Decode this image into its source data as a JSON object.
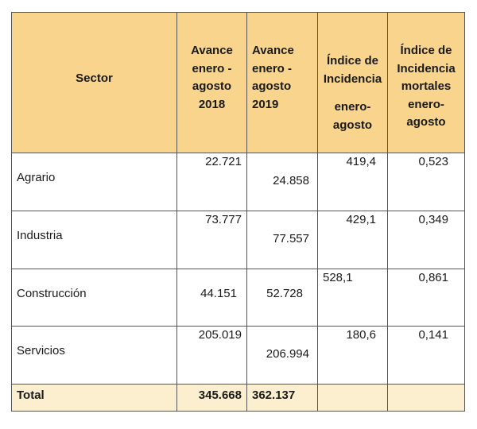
{
  "table": {
    "headers": {
      "sector": "Sector",
      "avance_2018": "Avance\nenero -\nagosto\n2018",
      "avance_2019": "Avance\nenero -\nagosto\n2019",
      "indice": "Índice de\nIncidencia",
      "indice_sub": "enero-\nagosto",
      "indice_mortales": "Índice de\nIncidencia\nmortales\nenero-\nagosto"
    },
    "rows": [
      {
        "sector": "Agrario",
        "avance_2018": "22.721",
        "avance_2019": "24.858",
        "indice": "419,4",
        "indice_mortales": "0,523"
      },
      {
        "sector": "Industria",
        "avance_2018": "73.777",
        "avance_2019": "77.557",
        "indice": "429,1",
        "indice_mortales": "0,349"
      },
      {
        "sector": "Construcción",
        "avance_2018": "44.151",
        "avance_2019": "52.728",
        "indice": "528,1",
        "indice_mortales": "0,861"
      },
      {
        "sector": "Servicios",
        "avance_2018": "205.019",
        "avance_2019": "206.994",
        "indice": "180,6",
        "indice_mortales": "0,141"
      }
    ],
    "total": {
      "label": "Total",
      "avance_2018": "345.668",
      "avance_2019": "362.137"
    },
    "colors": {
      "header_bg": "#f8d48c",
      "total_bg": "#fcefd0",
      "border": "#555555"
    }
  }
}
